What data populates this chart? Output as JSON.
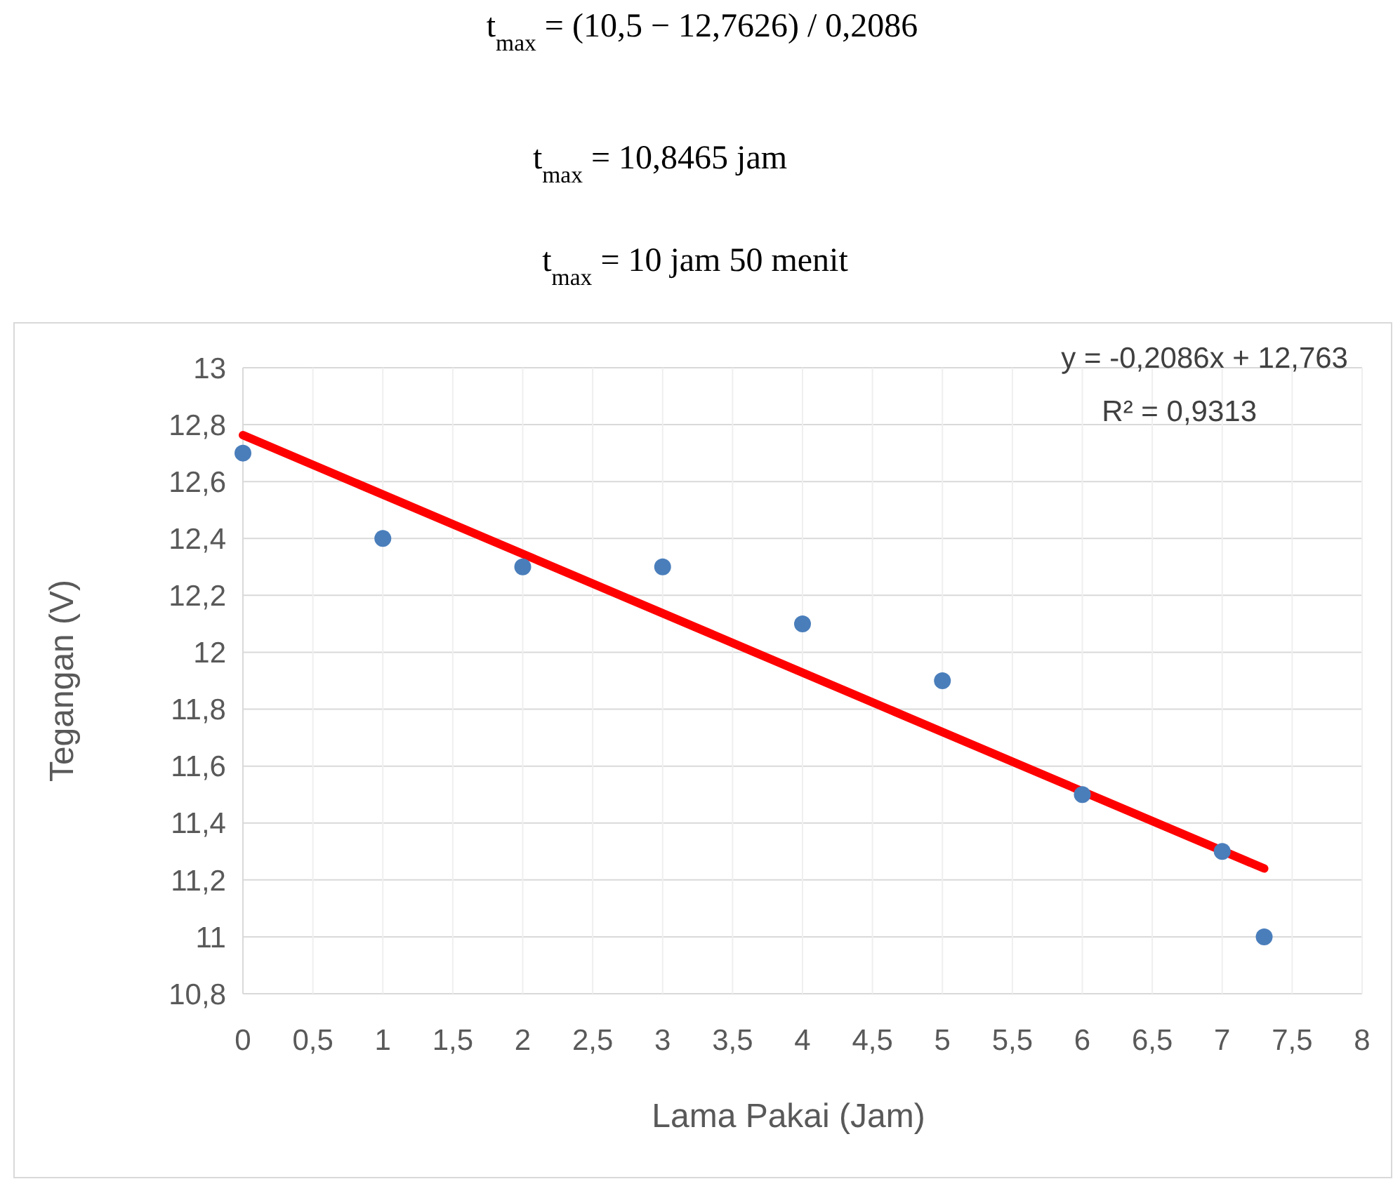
{
  "chart_data": {
    "type": "scatter",
    "xlabel": "Lama Pakai  (Jam)",
    "ylabel": "Tegangan (V)",
    "annotations": [
      "t$_{max}$ = (10,5 − 12,7626) / 0,2086",
      "t$_{max}$ = 10,8465 jam",
      "t$_{max}$ = 10 jam 50  menit",
      "y = -0,2086x + 12,763",
      "R² = 0,9313"
    ],
    "series": [
      {
        "color": "#4a7ebb",
        "marker": "circle",
        "x": [
          0,
          1,
          2,
          3,
          4,
          5,
          6,
          7,
          7.3
        ],
        "values": [
          12.7,
          12.4,
          12.3,
          12.3,
          12.1,
          11.9,
          11.5,
          11.3,
          11.0
        ]
      },
      {
        "type": "line",
        "color": "#ff0000",
        "marker": "none",
        "x": [
          0,
          7.3
        ],
        "values": [
          12.763,
          11.24
        ]
      }
    ],
    "xlim": [
      0,
      8
    ],
    "xticks": [
      0,
      {
        "value": 0.5,
        "label": "0,5"
      },
      1,
      {
        "value": 1.5,
        "label": "1,5"
      },
      2,
      {
        "value": 2.5,
        "label": "2,5"
      },
      3,
      {
        "value": 3.5,
        "label": "3,5"
      },
      4,
      {
        "value": 4.5,
        "label": "4,5"
      },
      5,
      {
        "value": 5.5,
        "label": "5,5"
      },
      6,
      {
        "value": 6.5,
        "label": "6,5"
      },
      7,
      {
        "value": 7.5,
        "label": "7,5"
      },
      8
    ],
    "ylim": [
      10.8,
      13
    ],
    "yticks": [
      {
        "value": 10.8,
        "label": "10,8"
      },
      11,
      {
        "value": 11.2,
        "label": "11,2"
      },
      {
        "value": 11.4,
        "label": "11,4"
      },
      {
        "value": 11.6,
        "label": "11,6"
      },
      {
        "value": 11.8,
        "label": "11,8"
      },
      12,
      {
        "value": 12.2,
        "label": "12,2"
      },
      {
        "value": 12.4,
        "label": "12,4"
      },
      {
        "value": 12.6,
        "label": "12,6"
      },
      {
        "value": 12.8,
        "label": "12,8"
      },
      13
    ],
    "grid": true
  }
}
